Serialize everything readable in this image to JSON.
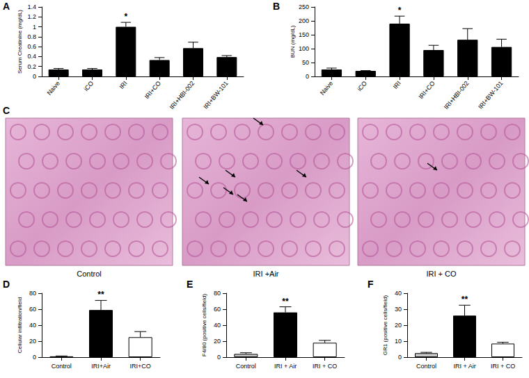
{
  "chart_data": [
    {
      "panel": "A",
      "type": "bar",
      "categories": [
        "Naive",
        "iCO",
        "IRI",
        "IRI+CO",
        "IRI+HBI-002",
        "IRI+BW-101"
      ],
      "values": [
        0.14,
        0.14,
        1.0,
        0.33,
        0.57,
        0.39
      ],
      "errors": [
        0.02,
        0.02,
        0.09,
        0.05,
        0.12,
        0.03
      ],
      "color": "#000000",
      "y_label": "Serum Creatinine (mg/dL)",
      "ylim": [
        0,
        1.4
      ],
      "yticks": [
        0,
        0.2,
        0.4,
        0.6,
        0.8,
        1.0,
        1.2,
        1.4
      ],
      "grid": false,
      "annotations": [
        {
          "category": "IRI",
          "text": "*"
        }
      ]
    },
    {
      "panel": "B",
      "type": "bar",
      "categories": [
        "Naive",
        "iCO",
        "IRI",
        "IRI+CO",
        "IRI+HBI-002",
        "IRI+BW-101"
      ],
      "values": [
        25,
        20,
        190,
        95,
        132,
        106
      ],
      "errors": [
        5,
        1,
        27,
        17,
        40,
        28
      ],
      "color": "#000000",
      "y_label": "BUN (mg/dL)",
      "ylim": [
        0,
        250
      ],
      "yticks": [
        0,
        50,
        100,
        150,
        200,
        250
      ],
      "grid": false,
      "annotations": [
        {
          "category": "IRI",
          "text": "*"
        }
      ]
    },
    {
      "panel": "D",
      "type": "bar",
      "categories": [
        "Control",
        "IRI+Air",
        "IRI+CO"
      ],
      "values": [
        1,
        59,
        25
      ],
      "errors": [
        0.5,
        12,
        7
      ],
      "colors": [
        "#d9d9d9",
        "#000000",
        "#ffffff"
      ],
      "y_label": "Cellular infiltration/field",
      "ylim": [
        0,
        80
      ],
      "yticks": [
        0,
        20,
        40,
        60,
        80
      ],
      "grid": false,
      "annotations": [
        {
          "category": "IRI+Air",
          "text": "**"
        }
      ]
    },
    {
      "panel": "E",
      "type": "bar",
      "categories": [
        "Control",
        "IRI + Air",
        "IRI + CO"
      ],
      "values": [
        4,
        56,
        18
      ],
      "errors": [
        1.5,
        7,
        3
      ],
      "colors": [
        "#c8c8c8",
        "#000000",
        "#ffffff"
      ],
      "y_label": "F4/80 (positive cells/field)",
      "ylim": [
        0,
        80
      ],
      "yticks": [
        0,
        20,
        40,
        60,
        80
      ],
      "grid": false,
      "annotations": [
        {
          "category": "IRI + Air",
          "text": "**"
        }
      ]
    },
    {
      "panel": "F",
      "type": "bar",
      "categories": [
        "Control",
        "IRI + Air",
        "IRI + CO"
      ],
      "values": [
        2.5,
        26,
        8.5
      ],
      "errors": [
        0.5,
        6.5,
        0.8
      ],
      "colors": [
        "#c8c8c8",
        "#000000",
        "#ffffff"
      ],
      "y_label": "GR1 (positive cells/field)",
      "ylim": [
        0,
        40
      ],
      "yticks": [
        0,
        10,
        20,
        30,
        40
      ],
      "grid": false,
      "annotations": [
        {
          "category": "IRI + Air",
          "text": "**"
        }
      ]
    }
  ],
  "image_panel": {
    "panel": "C",
    "captions": [
      "Control",
      "IRI +Air",
      "IRI + CO"
    ]
  }
}
